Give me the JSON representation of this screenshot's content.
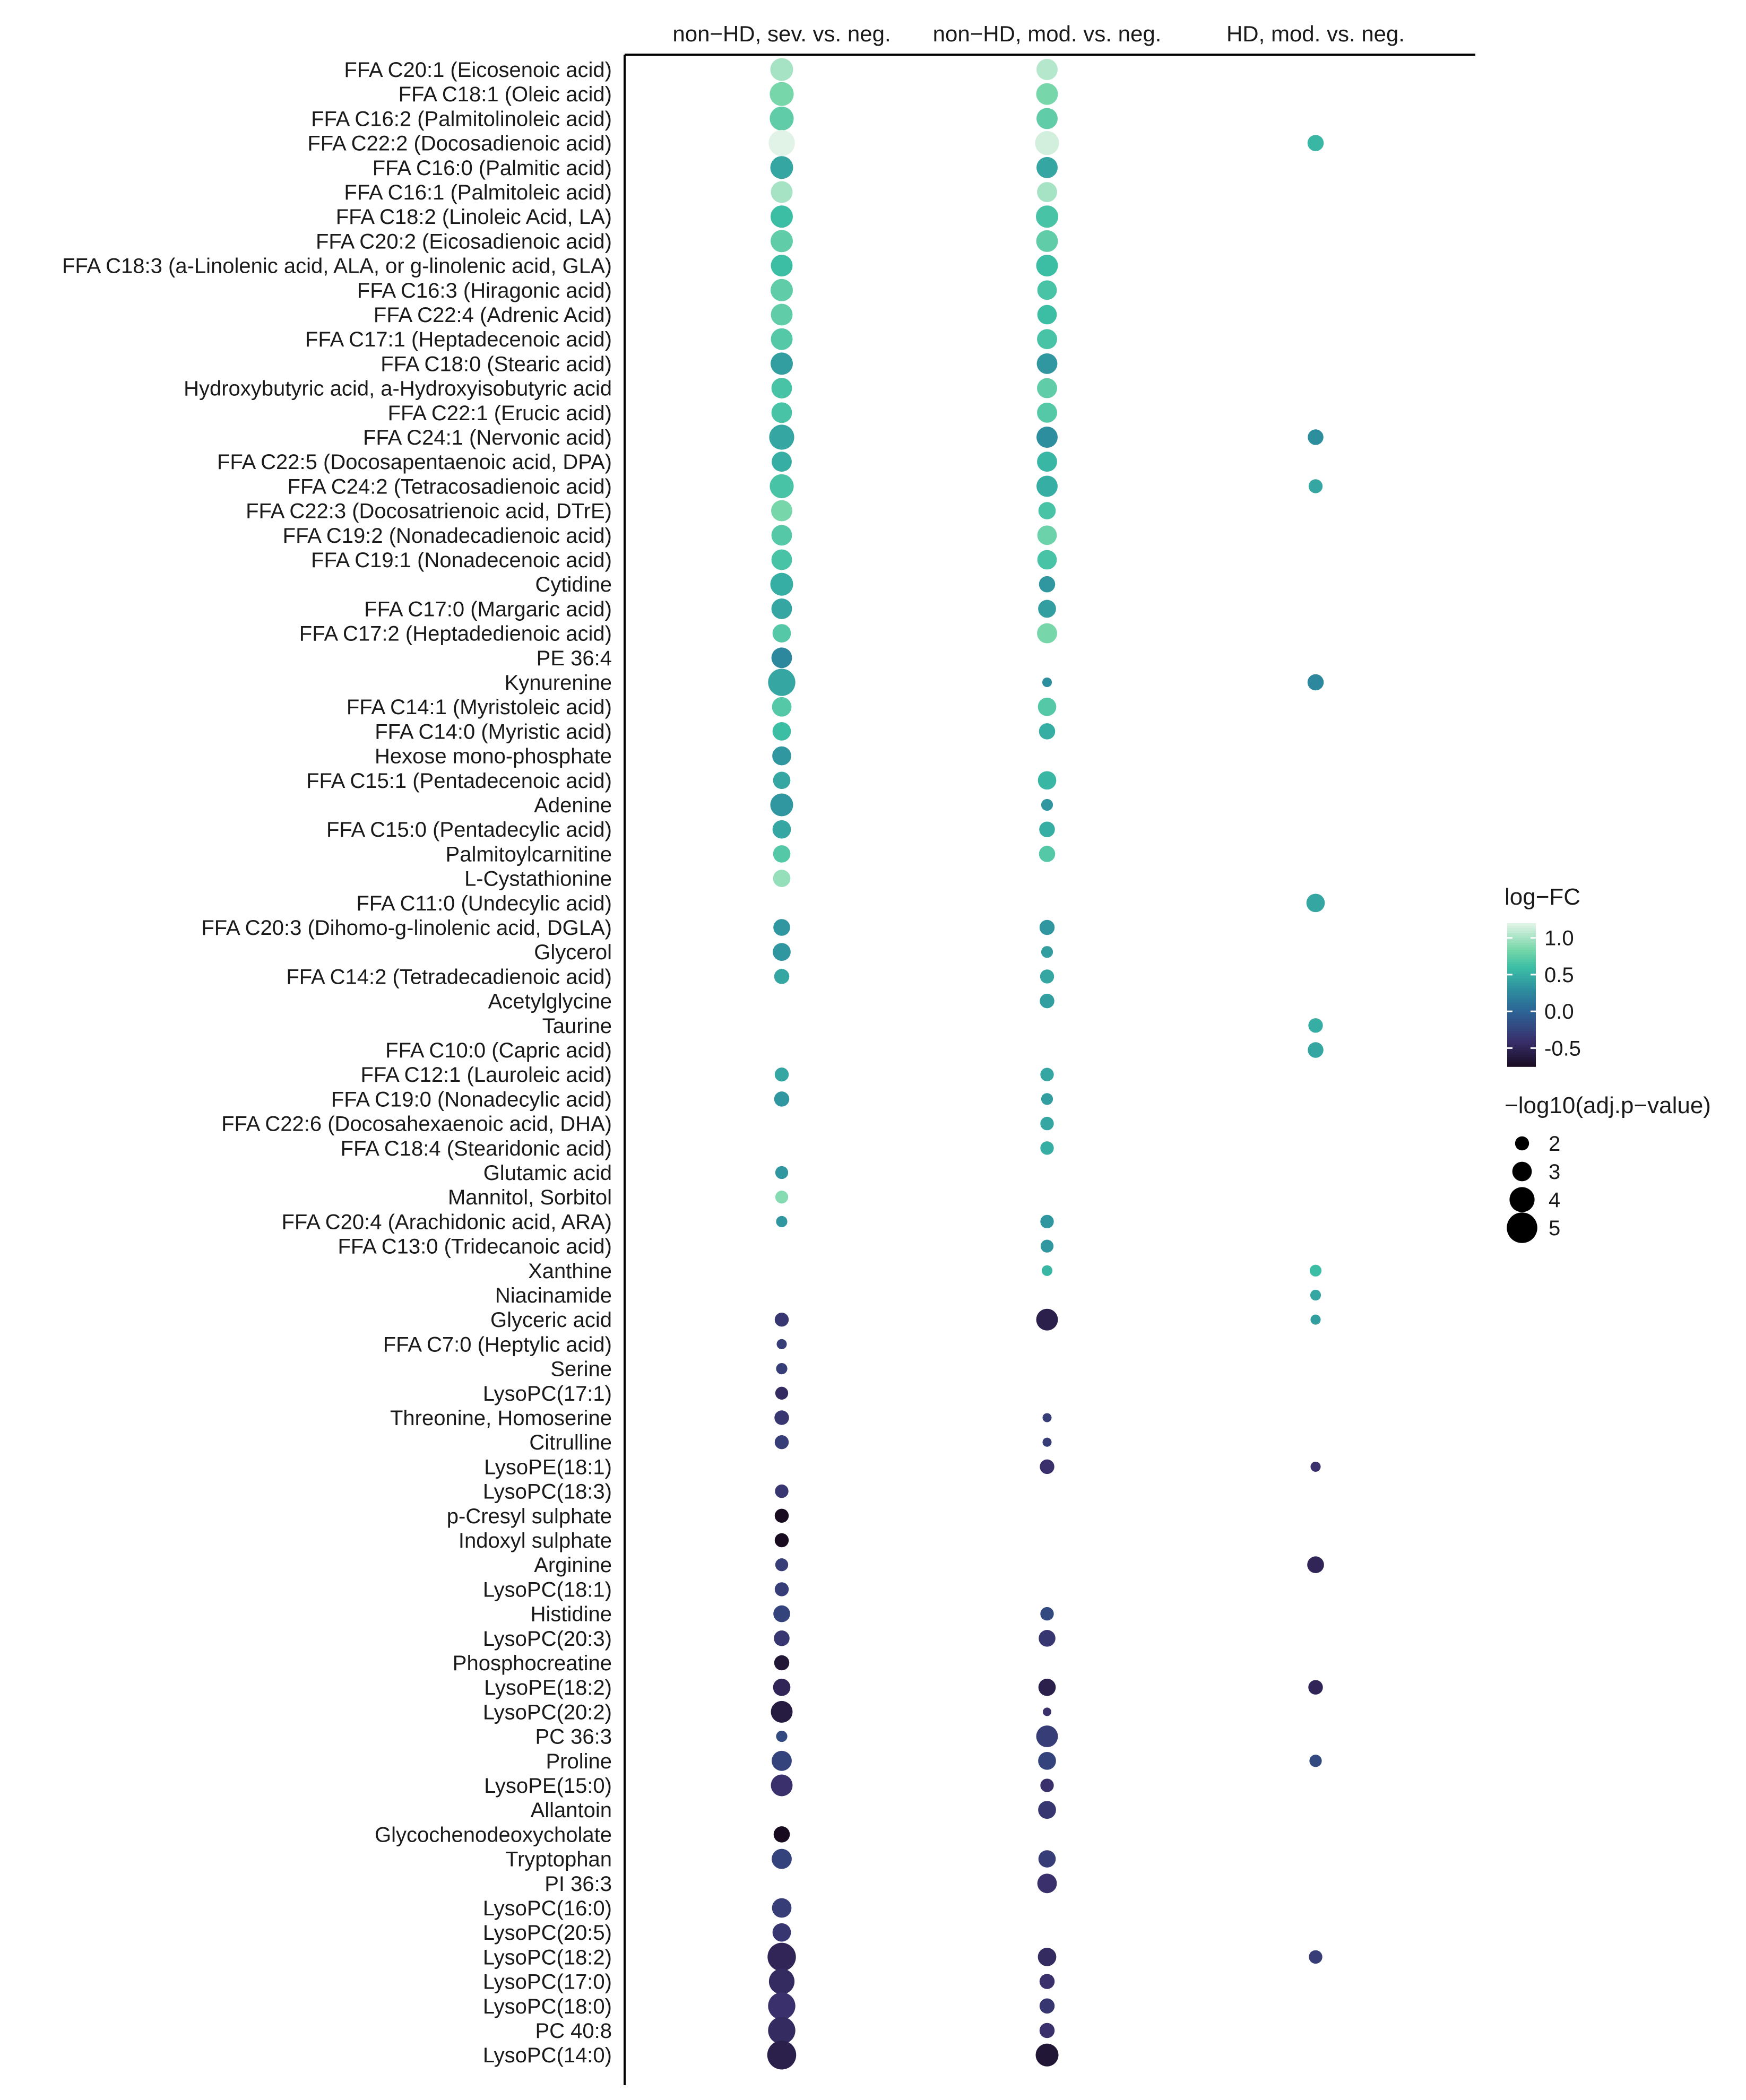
{
  "chart_data": {
    "type": "scatter",
    "title": "",
    "xlabel": "",
    "ylabel": "",
    "columns": [
      "non−HD, sev. vs. neg.",
      "non−HD, mod. vs. neg.",
      "HD, mod. vs. neg."
    ],
    "metabolites": [
      "FFA C20:1 (Eicosenoic acid)",
      "FFA C18:1 (Oleic acid)",
      "FFA C16:2 (Palmitolinoleic acid)",
      "FFA C22:2 (Docosadienoic acid)",
      "FFA C16:0 (Palmitic acid)",
      "FFA C16:1 (Palmitoleic acid)",
      "FFA C18:2 (Linoleic Acid, LA)",
      "FFA C20:2 (Eicosadienoic acid)",
      "FFA C18:3 (a-Linolenic acid, ALA, or g-linolenic acid, GLA)",
      "FFA C16:3 (Hiragonic acid)",
      "FFA C22:4 (Adrenic Acid)",
      "FFA C17:1 (Heptadecenoic acid)",
      "FFA C18:0 (Stearic acid)",
      "Hydroxybutyric acid, a-Hydroxyisobutyric acid",
      "FFA C22:1 (Erucic acid)",
      "FFA C24:1 (Nervonic acid)",
      "FFA C22:5 (Docosapentaenoic acid, DPA)",
      "FFA C24:2 (Tetracosadienoic acid)",
      "FFA C22:3 (Docosatrienoic acid, DTrE)",
      "FFA C19:2 (Nonadecadienoic acid)",
      "FFA C19:1 (Nonadecenoic acid)",
      "Cytidine",
      "FFA C17:0 (Margaric acid)",
      "FFA C17:2 (Heptadedienoic acid)",
      "PE 36:4",
      "Kynurenine",
      "FFA C14:1 (Myristoleic acid)",
      "FFA C14:0 (Myristic acid)",
      "Hexose mono-phosphate",
      "FFA C15:1 (Pentadecenoic acid)",
      "Adenine",
      "FFA C15:0 (Pentadecylic acid)",
      "Palmitoylcarnitine",
      "L-Cystathionine",
      "FFA C11:0 (Undecylic acid)",
      "FFA C20:3 (Dihomo-g-linolenic acid, DGLA)",
      "Glycerol",
      "FFA C14:2 (Tetradecadienoic acid)",
      "Acetylglycine",
      "Taurine",
      "FFA C10:0 (Capric acid)",
      "FFA C12:1 (Lauroleic acid)",
      "FFA C19:0 (Nonadecylic acid)",
      "FFA C22:6 (Docosahexaenoic acid, DHA)",
      "FFA C18:4 (Stearidonic acid)",
      "Glutamic acid",
      "Mannitol, Sorbitol",
      "FFA C20:4 (Arachidonic acid, ARA)",
      "FFA C13:0 (Tridecanoic acid)",
      "Xanthine",
      "Niacinamide",
      "Glyceric acid",
      "FFA C7:0 (Heptylic acid)",
      "Serine",
      "LysoPC(17:1)",
      "Threonine, Homoserine",
      "Citrulline",
      "LysoPE(18:1)",
      "LysoPC(18:3)",
      "p-Cresyl sulphate",
      "Indoxyl sulphate",
      "Arginine",
      "LysoPC(18:1)",
      "Histidine",
      "LysoPC(20:3)",
      "Phosphocreatine",
      "LysoPE(18:2)",
      "LysoPC(20:2)",
      "PC 36:3",
      "Proline",
      "LysoPE(15:0)",
      "Allantoin",
      "Glycochenodeoxycholate",
      "Tryptophan",
      "PI 36:3",
      "LysoPC(16:0)",
      "LysoPC(20:5)",
      "LysoPC(18:2)",
      "LysoPC(17:0)",
      "LysoPC(18:0)",
      "PC 40:8",
      "LysoPC(14:0)"
    ],
    "points_note": "each point: [row_index, column_index, log-FC, -log10(adj.p-value)]",
    "points": [
      [
        0,
        0,
        1.0,
        3.6
      ],
      [
        0,
        1,
        1.05,
        3.3
      ],
      [
        1,
        0,
        0.85,
        3.8
      ],
      [
        1,
        1,
        0.85,
        3.4
      ],
      [
        2,
        0,
        0.75,
        3.8
      ],
      [
        2,
        1,
        0.75,
        3.3
      ],
      [
        3,
        0,
        1.2,
        4.2
      ],
      [
        3,
        1,
        1.15,
        3.8
      ],
      [
        3,
        2,
        0.55,
        2.4
      ],
      [
        4,
        0,
        0.45,
        3.6
      ],
      [
        4,
        1,
        0.45,
        3.3
      ],
      [
        5,
        0,
        1.0,
        3.4
      ],
      [
        5,
        1,
        1.0,
        3.1
      ],
      [
        6,
        0,
        0.6,
        3.5
      ],
      [
        6,
        1,
        0.65,
        3.5
      ],
      [
        7,
        0,
        0.75,
        3.5
      ],
      [
        7,
        1,
        0.75,
        3.4
      ],
      [
        8,
        0,
        0.6,
        3.4
      ],
      [
        8,
        1,
        0.6,
        3.4
      ],
      [
        9,
        0,
        0.75,
        3.5
      ],
      [
        9,
        1,
        0.65,
        3.0
      ],
      [
        10,
        0,
        0.75,
        3.4
      ],
      [
        10,
        1,
        0.6,
        3.0
      ],
      [
        11,
        0,
        0.7,
        3.4
      ],
      [
        11,
        1,
        0.65,
        3.1
      ],
      [
        12,
        0,
        0.4,
        3.5
      ],
      [
        12,
        1,
        0.35,
        3.2
      ],
      [
        13,
        0,
        0.65,
        3.2
      ],
      [
        13,
        1,
        0.75,
        3.1
      ],
      [
        14,
        0,
        0.65,
        3.2
      ],
      [
        14,
        1,
        0.7,
        3.1
      ],
      [
        15,
        0,
        0.45,
        4.0
      ],
      [
        15,
        1,
        0.3,
        3.3
      ],
      [
        15,
        2,
        0.3,
        2.3
      ],
      [
        16,
        0,
        0.5,
        3.1
      ],
      [
        16,
        1,
        0.55,
        3.1
      ],
      [
        17,
        0,
        0.65,
        3.8
      ],
      [
        17,
        1,
        0.5,
        3.3
      ],
      [
        17,
        2,
        0.45,
        2.0
      ],
      [
        18,
        0,
        0.85,
        3.3
      ],
      [
        18,
        1,
        0.65,
        2.6
      ],
      [
        19,
        0,
        0.7,
        3.2
      ],
      [
        19,
        1,
        0.8,
        3.0
      ],
      [
        20,
        0,
        0.65,
        3.2
      ],
      [
        20,
        1,
        0.65,
        3.0
      ],
      [
        21,
        0,
        0.5,
        3.6
      ],
      [
        21,
        1,
        0.35,
        2.4
      ],
      [
        22,
        0,
        0.45,
        3.2
      ],
      [
        22,
        1,
        0.4,
        2.7
      ],
      [
        23,
        0,
        0.7,
        2.8
      ],
      [
        23,
        1,
        0.85,
        3.1
      ],
      [
        24,
        0,
        0.25,
        3.2
      ],
      [
        25,
        0,
        0.45,
        4.4
      ],
      [
        25,
        1,
        0.3,
        1.2
      ],
      [
        25,
        2,
        0.25,
        2.4
      ],
      [
        26,
        0,
        0.7,
        3.0
      ],
      [
        26,
        1,
        0.7,
        2.8
      ],
      [
        27,
        0,
        0.6,
        2.8
      ],
      [
        27,
        1,
        0.5,
        2.4
      ],
      [
        28,
        0,
        0.35,
        2.9
      ],
      [
        29,
        0,
        0.45,
        2.6
      ],
      [
        29,
        1,
        0.55,
        2.8
      ],
      [
        30,
        0,
        0.35,
        3.6
      ],
      [
        30,
        1,
        0.35,
        1.6
      ],
      [
        31,
        0,
        0.45,
        2.8
      ],
      [
        31,
        1,
        0.5,
        2.3
      ],
      [
        32,
        0,
        0.7,
        2.6
      ],
      [
        32,
        1,
        0.7,
        2.4
      ],
      [
        33,
        0,
        0.95,
        2.6
      ],
      [
        34,
        2,
        0.45,
        2.8
      ],
      [
        35,
        0,
        0.35,
        2.5
      ],
      [
        35,
        1,
        0.35,
        2.2
      ],
      [
        36,
        0,
        0.35,
        2.7
      ],
      [
        36,
        1,
        0.4,
        1.6
      ],
      [
        37,
        0,
        0.45,
        2.2
      ],
      [
        37,
        1,
        0.45,
        2.0
      ],
      [
        38,
        1,
        0.4,
        2.1
      ],
      [
        39,
        2,
        0.5,
        2.1
      ],
      [
        40,
        2,
        0.45,
        2.3
      ],
      [
        41,
        0,
        0.45,
        2.0
      ],
      [
        41,
        1,
        0.45,
        1.9
      ],
      [
        42,
        0,
        0.35,
        2.2
      ],
      [
        42,
        1,
        0.4,
        1.6
      ],
      [
        43,
        1,
        0.45,
        1.9
      ],
      [
        44,
        1,
        0.5,
        1.9
      ],
      [
        45,
        0,
        0.35,
        1.8
      ],
      [
        46,
        0,
        0.9,
        1.8
      ],
      [
        47,
        0,
        0.35,
        1.5
      ],
      [
        47,
        1,
        0.35,
        1.9
      ],
      [
        48,
        1,
        0.35,
        1.8
      ],
      [
        49,
        1,
        0.55,
        1.4
      ],
      [
        49,
        2,
        0.6,
        1.6
      ],
      [
        50,
        2,
        0.45,
        1.4
      ],
      [
        51,
        0,
        -0.35,
        2.0
      ],
      [
        51,
        1,
        -0.55,
        3.4
      ],
      [
        51,
        2,
        0.4,
        1.3
      ],
      [
        52,
        0,
        -0.3,
        1.3
      ],
      [
        53,
        0,
        -0.3,
        1.5
      ],
      [
        54,
        0,
        -0.45,
        1.8
      ],
      [
        55,
        0,
        -0.35,
        2.1
      ],
      [
        55,
        1,
        -0.3,
        1.1
      ],
      [
        56,
        0,
        -0.3,
        2.0
      ],
      [
        56,
        1,
        -0.3,
        1.1
      ],
      [
        57,
        1,
        -0.4,
        2.1
      ],
      [
        57,
        2,
        -0.4,
        1.3
      ],
      [
        58,
        0,
        -0.35,
        1.9
      ],
      [
        59,
        0,
        -0.75,
        2.0
      ],
      [
        60,
        0,
        -0.75,
        2.0
      ],
      [
        61,
        0,
        -0.3,
        1.8
      ],
      [
        61,
        2,
        -0.5,
        2.5
      ],
      [
        62,
        0,
        -0.3,
        2.0
      ],
      [
        63,
        0,
        -0.25,
        2.5
      ],
      [
        63,
        1,
        -0.2,
        1.9
      ],
      [
        64,
        0,
        -0.35,
        2.3
      ],
      [
        64,
        1,
        -0.35,
        2.5
      ],
      [
        65,
        0,
        -0.65,
        2.2
      ],
      [
        66,
        0,
        -0.5,
        2.6
      ],
      [
        66,
        1,
        -0.55,
        2.6
      ],
      [
        66,
        2,
        -0.5,
        2.1
      ],
      [
        67,
        0,
        -0.6,
        3.4
      ],
      [
        67,
        1,
        -0.4,
        1.0
      ],
      [
        68,
        0,
        -0.2,
        1.5
      ],
      [
        68,
        1,
        -0.3,
        3.4
      ],
      [
        69,
        0,
        -0.25,
        3.1
      ],
      [
        69,
        1,
        -0.25,
        2.7
      ],
      [
        69,
        2,
        -0.2,
        1.7
      ],
      [
        70,
        0,
        -0.4,
        3.4
      ],
      [
        70,
        1,
        -0.4,
        1.9
      ],
      [
        71,
        1,
        -0.35,
        2.7
      ],
      [
        72,
        0,
        -0.75,
        2.4
      ],
      [
        73,
        0,
        -0.25,
        3.1
      ],
      [
        73,
        1,
        -0.3,
        2.6
      ],
      [
        74,
        1,
        -0.4,
        3.0
      ],
      [
        75,
        0,
        -0.3,
        3.0
      ],
      [
        76,
        0,
        -0.35,
        2.8
      ],
      [
        77,
        0,
        -0.5,
        4.6
      ],
      [
        77,
        1,
        -0.45,
        2.8
      ],
      [
        77,
        2,
        -0.3,
        1.9
      ],
      [
        78,
        0,
        -0.45,
        4.1
      ],
      [
        78,
        1,
        -0.4,
        2.2
      ],
      [
        79,
        0,
        -0.4,
        4.4
      ],
      [
        79,
        1,
        -0.35,
        2.2
      ],
      [
        80,
        0,
        -0.45,
        4.4
      ],
      [
        80,
        1,
        -0.4,
        2.2
      ],
      [
        81,
        0,
        -0.55,
        4.7
      ],
      [
        81,
        1,
        -0.65,
        3.6
      ]
    ],
    "legend": {
      "color_title": "log−FC",
      "color_ticks": [
        "1.0",
        "0.5",
        "0.0",
        "-0.5"
      ],
      "color_tick_values": [
        1.0,
        0.5,
        0.0,
        -0.5
      ],
      "color_range": [
        -0.75,
        1.2
      ],
      "size_title": "−log10(adj.p−value)",
      "size_entries": [
        "2",
        "3",
        "4",
        "5"
      ],
      "size_values": [
        2,
        3,
        4,
        5
      ],
      "placement": "right"
    }
  }
}
